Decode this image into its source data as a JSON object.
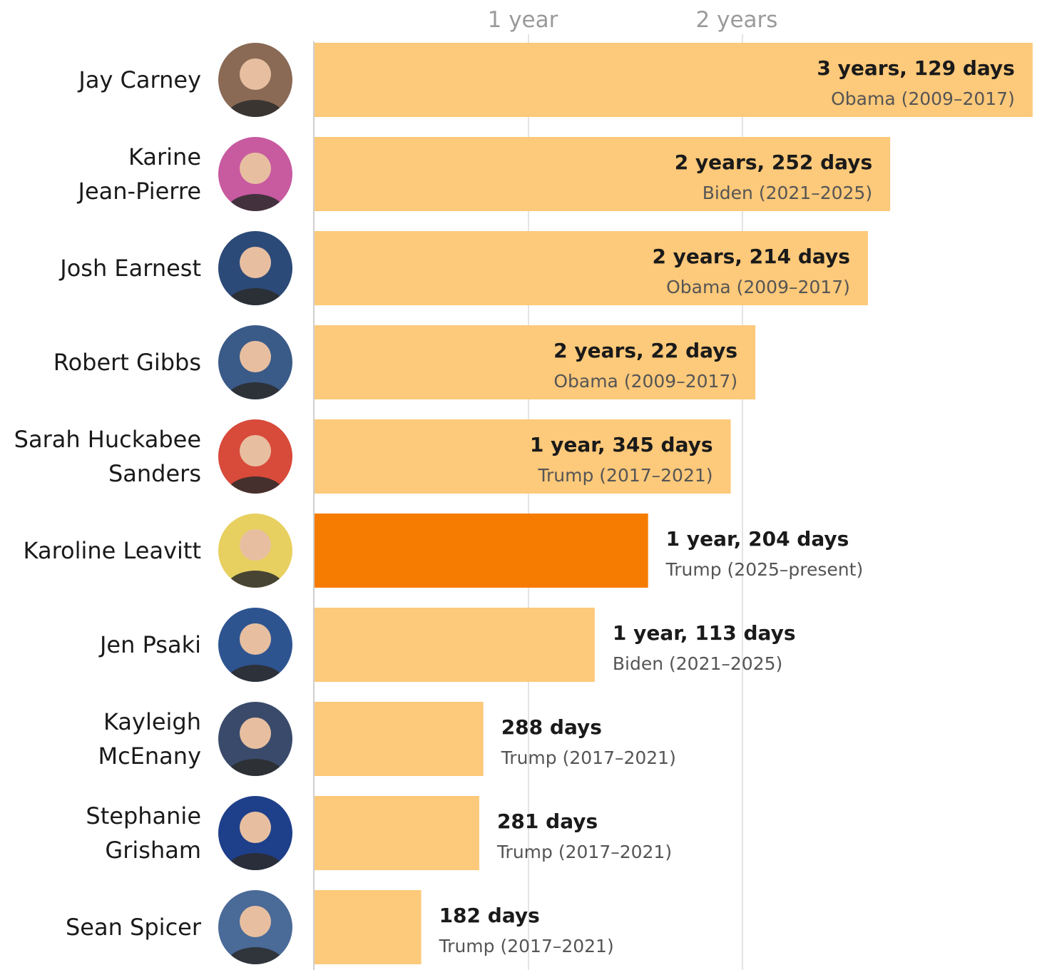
{
  "chart_data": {
    "type": "bar",
    "orientation": "horizontal",
    "title": "",
    "xlabel": "",
    "ylabel": "",
    "x_unit": "days",
    "xlim": [
      0,
      1242
    ],
    "grid": true,
    "legend": "none",
    "x_ticks": [
      {
        "value": 365,
        "label": "1 year"
      },
      {
        "value": 730,
        "label": "2 years"
      }
    ],
    "colors": {
      "default_bar": "#fdc97a",
      "highlight_bar": "#f57c00",
      "gridline": "#e4e4e4",
      "baseline": "#cfcfcf"
    },
    "rows": [
      {
        "name_lines": [
          "Jay Carney"
        ],
        "days": 1225,
        "duration_label": "3 years, 129 days",
        "admin_label": "Obama (2009–2017)",
        "highlight": false,
        "photo_bg": "#8a6a55",
        "photo_icon": "portrait-jay-carney-icon"
      },
      {
        "name_lines": [
          "Karine",
          "Jean-Pierre"
        ],
        "days": 982,
        "duration_label": "2 years, 252 days",
        "admin_label": "Biden (2021–2025)",
        "highlight": false,
        "photo_bg": "#c85aa0",
        "photo_icon": "portrait-karine-jean-pierre-icon"
      },
      {
        "name_lines": [
          "Josh Earnest"
        ],
        "days": 944,
        "duration_label": "2 years, 214 days",
        "admin_label": "Obama (2009–2017)",
        "highlight": false,
        "photo_bg": "#2c4a78",
        "photo_icon": "portrait-josh-earnest-icon"
      },
      {
        "name_lines": [
          "Robert Gibbs"
        ],
        "days": 752,
        "duration_label": "2 years, 22 days",
        "admin_label": "Obama (2009–2017)",
        "highlight": false,
        "photo_bg": "#3a5a88",
        "photo_icon": "portrait-robert-gibbs-icon"
      },
      {
        "name_lines": [
          "Sarah Huckabee",
          "Sanders"
        ],
        "days": 710,
        "duration_label": "1 year, 345 days",
        "admin_label": "Trump (2017–2021)",
        "highlight": false,
        "photo_bg": "#d84a3a",
        "photo_icon": "portrait-sarah-huckabee-sanders-icon"
      },
      {
        "name_lines": [
          "Karoline Leavitt"
        ],
        "days": 569,
        "duration_label": "1 year, 204 days",
        "admin_label": "Trump (2025–present)",
        "highlight": true,
        "photo_bg": "#e8d060",
        "photo_icon": "portrait-karoline-leavitt-icon"
      },
      {
        "name_lines": [
          "Jen Psaki"
        ],
        "days": 478,
        "duration_label": "1 year, 113 days",
        "admin_label": "Biden (2021–2025)",
        "highlight": false,
        "photo_bg": "#2e5490",
        "photo_icon": "portrait-jen-psaki-icon"
      },
      {
        "name_lines": [
          "Kayleigh",
          "McEnany"
        ],
        "days": 288,
        "duration_label": "288 days",
        "admin_label": "Trump (2017–2021)",
        "highlight": false,
        "photo_bg": "#3a4a6a",
        "photo_icon": "portrait-kayleigh-mcenany-icon"
      },
      {
        "name_lines": [
          "Stephanie",
          "Grisham"
        ],
        "days": 281,
        "duration_label": "281 days",
        "admin_label": "Trump (2017–2021)",
        "highlight": false,
        "photo_bg": "#1e3f8a",
        "photo_icon": "portrait-stephanie-grisham-icon"
      },
      {
        "name_lines": [
          "Sean Spicer"
        ],
        "days": 182,
        "duration_label": "182 days",
        "admin_label": "Trump (2017–2021)",
        "highlight": false,
        "photo_bg": "#4a6a98",
        "photo_icon": "portrait-sean-spicer-icon"
      }
    ]
  }
}
